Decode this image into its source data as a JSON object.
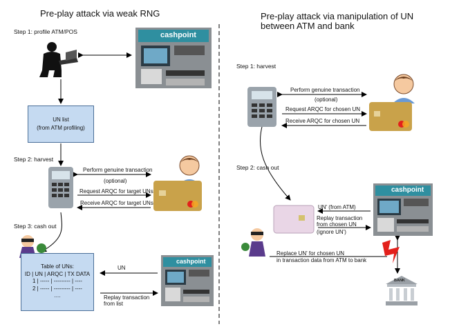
{
  "left": {
    "title": "Pre-play attack via weak RNG",
    "step1": "Step 1: profile ATM/POS",
    "un_list_line1": "UN list",
    "un_list_line2": "(from ATM profiling)",
    "step2": "Step 2: harvest",
    "perform": "Perform genuine transaction",
    "optional": "(optional)",
    "request": "Request ARQC for target UNs",
    "receive": "Receive ARQC for target UNs",
    "step3": "Step 3: cash out",
    "table_title": "Table of UNs:",
    "table_header": "ID | UN | ARQC | TX DATA",
    "table_row1": "1  | ----- | --------- | ----",
    "table_row2": "2  | ----- | --------- | ----",
    "table_more": "....",
    "un_arrow": "UN",
    "replay_line1": "Replay transaction",
    "replay_line2": "from list",
    "atm_brand": "cashpoint"
  },
  "right": {
    "title_line1": "Pre-play attack via manipulation of UN",
    "title_line2": "between ATM and bank",
    "step1": "Step 1: harvest",
    "perform": "Perform genuine transaction",
    "optional": "(optional)",
    "request": "Request ARQC for chosen UN",
    "receive": "Receive ARQC for chosen UN",
    "step2": "Step 2: cash out",
    "un_prime": "UN' (from ATM)",
    "replay_line1": "Replay transaction",
    "replay_line2": "from chosen UN",
    "replay_line3": "(ignore UN')",
    "replace_line1": "Replace UN' for chosen UN",
    "replace_line2": "in transaction data from ATM to bank",
    "bank_label": "BANK",
    "atm_brand": "cashpoint"
  },
  "colors": {
    "box_fill": "#c5daf1",
    "box_border": "#4a6e98",
    "atm_teal": "#2f8fa0",
    "card_gold": "#c9a24a",
    "lightning_red": "#e3201b"
  }
}
